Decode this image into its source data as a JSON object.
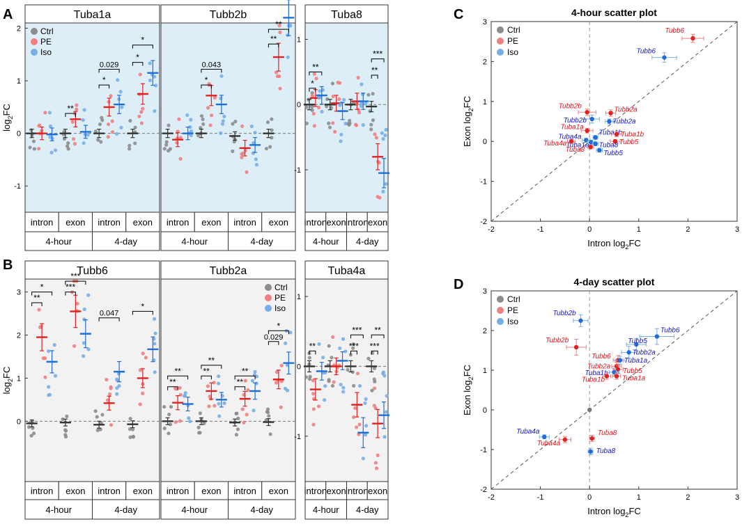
{
  "panel_letters": {
    "A": "A",
    "B": "B",
    "C": "C",
    "D": "D"
  },
  "legend": {
    "ctrl": "Ctrl",
    "pe": "PE",
    "iso": "Iso"
  },
  "colors": {
    "ctrl": "#8c8c8c",
    "pe": "#f07f7f",
    "iso": "#78aee6",
    "ctrl_mean": "#333333",
    "pe_mean": "#dd2222",
    "iso_mean": "#1f6ed6",
    "bgA": "#ddeef7",
    "bgB": "#f2f2f2",
    "red_label": "#e0141e",
    "blue_label": "#1414c8"
  },
  "strip_y_label_prefix": "log",
  "strip_y_label_sub": "2",
  "strip_y_label_suffix": "FC",
  "chart_data": [
    {
      "id": "A",
      "type": "strip",
      "ylim": [
        -1.5,
        2.1
      ],
      "yticks": [
        "-1",
        "0",
        "1",
        "2"
      ],
      "groups": [
        {
          "title": "Tuba1a",
          "legend": true,
          "legend_pos": "top-left",
          "time_labels": [
            "4-hour",
            "4-day"
          ],
          "sub_labels": [
            "intron",
            "exon",
            "intron",
            "exon"
          ],
          "means": [
            [
              0,
              0,
              -0.02
            ],
            [
              0,
              0.27,
              0.03
            ],
            [
              0,
              0.5,
              0.55
            ],
            [
              0,
              0.75,
              1.15
            ]
          ],
          "annotations": [
            {
              "sub": 1,
              "pair": "ctrl-pe",
              "text": "**",
              "y": 0.38
            },
            {
              "sub": 2,
              "pair": "ctrl-pe",
              "text": "*",
              "y": 0.92
            },
            {
              "sub": 2,
              "pair": "ctrl-iso",
              "text": "0.029",
              "y": 1.22
            },
            {
              "sub": 3,
              "pair": "ctrl-pe",
              "text": "*",
              "y": 1.35
            },
            {
              "sub": 3,
              "pair": "ctrl-iso",
              "text": "*",
              "y": 1.68
            }
          ]
        },
        {
          "title": "Tubb2b",
          "legend": false,
          "time_labels": [
            "4-hour",
            "4-day"
          ],
          "sub_labels": [
            "intron",
            "exon",
            "intron",
            "exon"
          ],
          "means": [
            [
              0,
              -0.12,
              0
            ],
            [
              0,
              0.72,
              0.55
            ],
            [
              -0.05,
              -0.28,
              -0.22
            ],
            [
              0,
              1.45,
              2.2
            ]
          ],
          "annotations": [
            {
              "sub": 1,
              "pair": "ctrl-pe",
              "text": "*",
              "y": 0.92
            },
            {
              "sub": 1,
              "pair": "ctrl-iso",
              "text": "0.043",
              "y": 1.22
            },
            {
              "sub": 3,
              "pair": "ctrl-pe",
              "text": "**",
              "y": 1.7
            },
            {
              "sub": 3,
              "pair": "ctrl-iso",
              "text": "**",
              "y": 1.98
            }
          ]
        },
        {
          "title": "Tuba8",
          "legend": false,
          "yticks_own": true,
          "ylim": [
            -1.65,
            1.25
          ],
          "yticks": [
            "-1",
            "0",
            "1"
          ],
          "time_labels": [
            "4-hour",
            "4-day"
          ],
          "sub_labels": [
            "intron",
            "exon"
          ],
          "means": [
            [
              0,
              0.1,
              0.14
            ],
            [
              0,
              0.02,
              -0.1
            ],
            [
              0,
              0.05,
              0.05
            ],
            [
              -0.03,
              -0.8,
              -1.05
            ]
          ],
          "annotations": [
            {
              "sub": 0,
              "pair": "ctrl-pe",
              "text": "*",
              "y": 0.25
            },
            {
              "sub": 0,
              "pair": "ctrl-iso",
              "text": "**",
              "y": 0.5
            },
            {
              "sub": 3,
              "pair": "ctrl-pe",
              "text": "**",
              "y": 0.45
            },
            {
              "sub": 3,
              "pair": "ctrl-iso",
              "text": "***",
              "y": 0.7
            }
          ]
        }
      ]
    },
    {
      "id": "B",
      "type": "strip",
      "ylim": [
        -1.4,
        3.3
      ],
      "yticks": [
        "0",
        "1",
        "2",
        "3"
      ],
      "groups": [
        {
          "title": "Tubb6",
          "legend": false,
          "time_labels": [
            "4-hour",
            "4-day"
          ],
          "sub_labels": [
            "intron",
            "exon",
            "intron",
            "exon"
          ],
          "means": [
            [
              -0.05,
              1.95,
              1.38
            ],
            [
              -0.03,
              2.55,
              2.03
            ],
            [
              -0.08,
              0.42,
              1.15
            ],
            [
              -0.07,
              1.0,
              1.67
            ]
          ],
          "annotations": [
            {
              "sub": 0,
              "pair": "ctrl-pe",
              "text": "**",
              "y": 2.75
            },
            {
              "sub": 0,
              "pair": "ctrl-iso",
              "text": "*",
              "y": 3.0
            },
            {
              "sub": 1,
              "pair": "ctrl-pe",
              "text": "***",
              "y": 3.0
            },
            {
              "sub": 1,
              "pair": "ctrl-iso",
              "text": "***",
              "y": 3.25
            },
            {
              "sub": 2,
              "pair": "ctrl-iso",
              "text": "0.047",
              "y": 2.4
            },
            {
              "sub": 3,
              "pair": "ctrl-iso",
              "text": "*",
              "y": 2.55
            }
          ]
        },
        {
          "title": "Tubb2a",
          "legend": true,
          "legend_pos": "top-right",
          "time_labels": [
            "4-hour",
            "4-day"
          ],
          "sub_labels": [
            "intron",
            "exon",
            "intron",
            "exon"
          ],
          "means": [
            [
              0,
              0.43,
              0.4
            ],
            [
              0,
              0.7,
              0.5
            ],
            [
              -0.03,
              0.52,
              0.7
            ],
            [
              -0.02,
              0.97,
              1.35
            ]
          ],
          "annotations": [
            {
              "sub": 0,
              "pair": "ctrl-pe",
              "text": "**",
              "y": 0.8
            },
            {
              "sub": 0,
              "pair": "ctrl-iso",
              "text": "**",
              "y": 1.05
            },
            {
              "sub": 1,
              "pair": "ctrl-pe",
              "text": "**",
              "y": 1.05
            },
            {
              "sub": 1,
              "pair": "ctrl-iso",
              "text": "**",
              "y": 1.3
            },
            {
              "sub": 2,
              "pair": "ctrl-pe",
              "text": "**",
              "y": 0.8
            },
            {
              "sub": 2,
              "pair": "ctrl-iso",
              "text": "**",
              "y": 1.05
            },
            {
              "sub": 3,
              "pair": "ctrl-pe",
              "text": "0.029",
              "y": 1.85
            },
            {
              "sub": 3,
              "pair": "ctrl-iso",
              "text": "*",
              "y": 2.1
            }
          ]
        },
        {
          "title": "Tuba4a",
          "legend": false,
          "yticks_own": true,
          "ylim": [
            -1.65,
            1.25
          ],
          "yticks": [
            "-1",
            "0",
            "1"
          ],
          "time_labels": [
            "4-hour",
            "4-day"
          ],
          "sub_labels": [
            "intron",
            "exon"
          ],
          "means": [
            [
              0,
              -0.33,
              -0.07
            ],
            [
              0,
              0,
              0.08
            ],
            [
              0,
              -0.55,
              -0.95
            ],
            [
              0,
              -0.82,
              -0.7
            ]
          ],
          "annotations": [
            {
              "sub": 0,
              "pair": "ctrl-pe",
              "text": "**",
              "y": 0.22
            },
            {
              "sub": 2,
              "pair": "ctrl-pe",
              "text": "***",
              "y": 0.22
            },
            {
              "sub": 2,
              "pair": "ctrl-iso",
              "text": "***",
              "y": 0.45
            },
            {
              "sub": 3,
              "pair": "ctrl-pe",
              "text": "***",
              "y": 0.22
            },
            {
              "sub": 3,
              "pair": "ctrl-iso",
              "text": "**",
              "y": 0.45
            }
          ]
        }
      ]
    },
    {
      "id": "C",
      "type": "scatter",
      "title": "4-hour scatter plot",
      "xlabel_prefix": "Intron log",
      "ylabel_prefix": "Exon log",
      "label_sub": "2",
      "label_suffix": "FC",
      "xlim": [
        -2,
        3
      ],
      "ylim": [
        -2,
        3
      ],
      "xticks": [
        "-2",
        "-1",
        "0",
        "1",
        "2",
        "3"
      ],
      "yticks": [
        "-2",
        "-1",
        "0",
        "1",
        "2",
        "3"
      ],
      "legend": true,
      "points": [
        {
          "label": "Tubb6",
          "group": "pe",
          "x": 2.1,
          "y": 2.58,
          "xerr": 0.22,
          "yerr": 0.1,
          "lx": -40,
          "ly": -8
        },
        {
          "label": "Tubb6",
          "group": "iso",
          "x": 1.52,
          "y": 2.1,
          "xerr": 0.25,
          "yerr": 0.12,
          "lx": -40,
          "ly": -6
        },
        {
          "label": "Tubb2b",
          "group": "pe",
          "x": -0.05,
          "y": 0.73,
          "xerr": 0.18,
          "yerr": 0.08,
          "lx": -41,
          "ly": -6
        },
        {
          "label": "Tubb2a",
          "group": "pe",
          "x": 0.43,
          "y": 0.71,
          "xerr": 0.1,
          "yerr": 0.08,
          "lx": 5,
          "ly": -2
        },
        {
          "label": "Tubb2b",
          "group": "iso",
          "x": 0.05,
          "y": 0.56,
          "xerr": 0.15,
          "yerr": 0.1,
          "lx": -41,
          "ly": 5
        },
        {
          "label": "Tubb2a",
          "group": "iso",
          "x": 0.4,
          "y": 0.5,
          "xerr": 0.08,
          "yerr": 0.06,
          "lx": 5,
          "ly": 3
        },
        {
          "label": "Tuba1a",
          "group": "pe",
          "x": -0.05,
          "y": 0.27,
          "xerr": 0.12,
          "yerr": 0.06,
          "lx": -38,
          "ly": -2
        },
        {
          "label": "Tuba1b",
          "group": "iso",
          "x": 0.12,
          "y": 0.1,
          "xerr": 0.05,
          "yerr": 0.05,
          "lx": 5,
          "ly": -4
        },
        {
          "label": "Tuba1b",
          "group": "pe",
          "x": 0.55,
          "y": 0.18,
          "xerr": 0.1,
          "yerr": 0.06,
          "lx": 6,
          "ly": 3
        },
        {
          "label": "Tuba4a",
          "group": "iso",
          "x": -0.07,
          "y": 0.03,
          "xerr": 0.08,
          "yerr": 0.05,
          "lx": -40,
          "ly": -2
        },
        {
          "label": "Tuba1a",
          "group": "iso",
          "x": 0.03,
          "y": -0.02,
          "xerr": 0.08,
          "yerr": 0.05,
          "lx": -36,
          "ly": 7
        },
        {
          "label": "Tuba4a",
          "group": "pe",
          "x": -0.37,
          "y": 0,
          "xerr": 0.08,
          "yerr": 0.05,
          "lx": -40,
          "ly": 6
        },
        {
          "label": "Tubb5",
          "group": "pe",
          "x": 0.52,
          "y": 0,
          "xerr": 0.1,
          "yerr": 0.05,
          "lx": 6,
          "ly": 4
        },
        {
          "label": "Tuba8",
          "group": "iso",
          "x": 0.12,
          "y": -0.06,
          "xerr": 0.06,
          "yerr": 0.05,
          "lx": 5,
          "ly": 5
        },
        {
          "label": "Tuba8",
          "group": "pe",
          "x": 0.02,
          "y": -0.14,
          "xerr": 0.06,
          "yerr": 0.05,
          "lx": -36,
          "ly": 7
        },
        {
          "label": "Tubb5",
          "group": "iso",
          "x": 0.2,
          "y": -0.22,
          "xerr": 0.06,
          "yerr": 0.05,
          "lx": 6,
          "ly": 7
        }
      ]
    },
    {
      "id": "D",
      "type": "scatter",
      "title": "4-day scatter plot",
      "xlabel_prefix": "Intron log",
      "ylabel_prefix": "Exon log",
      "label_sub": "2",
      "label_suffix": "FC",
      "xlim": [
        -2,
        3
      ],
      "ylim": [
        -2,
        3
      ],
      "xticks": [
        "-2",
        "-1",
        "0",
        "1",
        "2",
        "3"
      ],
      "yticks": [
        "-2",
        "-1",
        "0",
        "1",
        "2",
        "3"
      ],
      "legend": true,
      "points": [
        {
          "label": "Tubb2b",
          "group": "iso",
          "x": -0.18,
          "y": 2.25,
          "xerr": 0.15,
          "yerr": 0.15,
          "lx": -40,
          "ly": -8
        },
        {
          "label": "Tubb6",
          "group": "iso",
          "x": 1.37,
          "y": 1.85,
          "xerr": 0.35,
          "yerr": 0.2,
          "lx": 5,
          "ly": -6
        },
        {
          "label": "Tubb5",
          "group": "iso",
          "x": 0.95,
          "y": 1.65,
          "xerr": 0.2,
          "yerr": 0.15,
          "lx": -12,
          "ly": -2
        },
        {
          "label": "Tubb2b",
          "group": "pe",
          "x": -0.27,
          "y": 1.58,
          "xerr": 0.2,
          "yerr": 0.2,
          "lx": -44,
          "ly": -7
        },
        {
          "label": "Tubb2a",
          "group": "iso",
          "x": 0.8,
          "y": 1.45,
          "xerr": 0.15,
          "yerr": 0.15,
          "lx": 5,
          "ly": 3
        },
        {
          "label": "Tubb6",
          "group": "pe",
          "x": 0.58,
          "y": 1.25,
          "xerr": 0.1,
          "yerr": 0.12,
          "lx": -38,
          "ly": -3
        },
        {
          "label": "Tuba1a",
          "group": "iso",
          "x": 0.62,
          "y": 1.25,
          "xerr": 0.1,
          "yerr": 0.1,
          "lx": 6,
          "ly": 3
        },
        {
          "label": "Tubb2a",
          "group": "pe",
          "x": 0.55,
          "y": 1.1,
          "xerr": 0.1,
          "yerr": 0.1,
          "lx": -42,
          "ly": 3
        },
        {
          "label": "Tubb5",
          "group": "pe",
          "x": 0.58,
          "y": 1.02,
          "xerr": 0.1,
          "yerr": 0.1,
          "lx": 7,
          "ly": 5
        },
        {
          "label": "Tuba1b",
          "group": "iso",
          "x": 0.5,
          "y": 0.95,
          "xerr": 0.1,
          "yerr": 0.1,
          "lx": -42,
          "ly": 4
        },
        {
          "label": "Tuba1b",
          "group": "pe",
          "x": 0.35,
          "y": 0.85,
          "xerr": 0.08,
          "yerr": 0.08,
          "lx": -36,
          "ly": 8
        },
        {
          "label": "Tuba1a",
          "group": "pe",
          "x": 0.55,
          "y": 0.85,
          "xerr": 0.08,
          "yerr": 0.08,
          "lx": 8,
          "ly": 6
        },
        {
          "label": "Ctrl",
          "group": "ctrl",
          "x": 0,
          "y": 0,
          "xerr": 0,
          "yerr": 0,
          "lx": 0,
          "ly": 0,
          "nolabel": true
        },
        {
          "label": "Tuba4a",
          "group": "iso",
          "x": -0.92,
          "y": -0.68,
          "xerr": 0.1,
          "yerr": 0.05,
          "lx": -40,
          "ly": -5
        },
        {
          "label": "Tuba4a",
          "group": "pe",
          "x": -0.5,
          "y": -0.75,
          "xerr": 0.12,
          "yerr": 0.08,
          "lx": -40,
          "ly": 8
        },
        {
          "label": "Tuba8",
          "group": "pe",
          "x": 0.05,
          "y": -0.72,
          "xerr": 0.05,
          "yerr": 0.08,
          "lx": 8,
          "ly": -5
        },
        {
          "label": "Tuba8",
          "group": "iso",
          "x": 0.02,
          "y": -1.05,
          "xerr": 0.05,
          "yerr": 0.08,
          "lx": 8,
          "ly": 2
        }
      ]
    }
  ]
}
